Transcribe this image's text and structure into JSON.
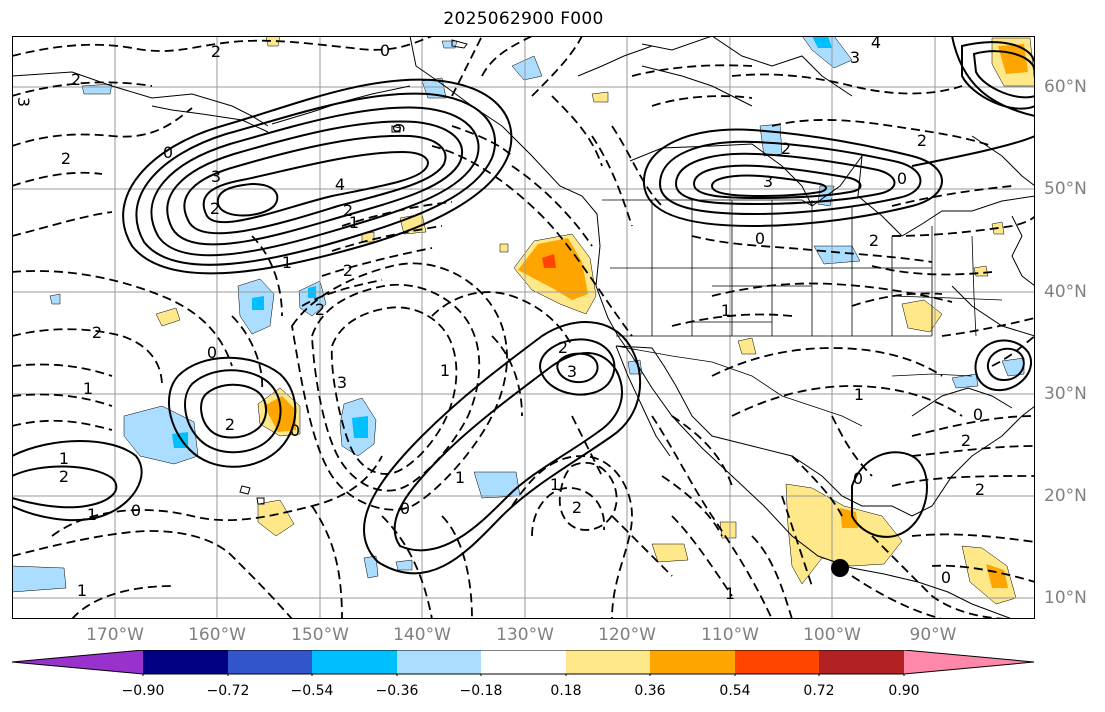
{
  "title": "2025062900 F000",
  "map": {
    "grid": true,
    "colors": {
      "contour": "#000000",
      "grid": "#999999",
      "coast": "#000000",
      "marker": "#000000"
    }
  },
  "lon_labels": [
    "170°W",
    "160°W",
    "150°W",
    "140°W",
    "130°W",
    "120°W",
    "110°W",
    "100°W",
    "90°W"
  ],
  "lat_labels": [
    "60°N",
    "50°N",
    "40°N",
    "30°N",
    "20°N",
    "10°N"
  ],
  "colorbar": {
    "colors": [
      "#9932cc",
      "#000080",
      "#3355cc",
      "#00bfff",
      "#aaddff",
      "#ffffff",
      "#ffe88a",
      "#ffa500",
      "#ff4500",
      "#b22222",
      "#ff88aa"
    ],
    "ticks": [
      "−0.90",
      "−0.72",
      "−0.54",
      "−0.36",
      "−0.18",
      "0.18",
      "0.36",
      "0.54",
      "0.72",
      "0.90"
    ]
  },
  "contour_labels": [
    "2",
    "0",
    "4",
    "3",
    "2",
    "6",
    "3",
    "4",
    "2",
    "1",
    "0",
    "2",
    "3",
    "2",
    "3",
    "0",
    "2",
    "2",
    "1",
    "2",
    "0",
    "3",
    "2",
    "0",
    "1",
    "2",
    "2",
    "1",
    "1",
    "0",
    "1",
    "2",
    "1",
    "1",
    "2",
    "0",
    "2",
    "3",
    "0",
    "1",
    "1",
    "2",
    "2",
    "0",
    "2",
    "1",
    "0",
    "0",
    "1"
  ]
}
